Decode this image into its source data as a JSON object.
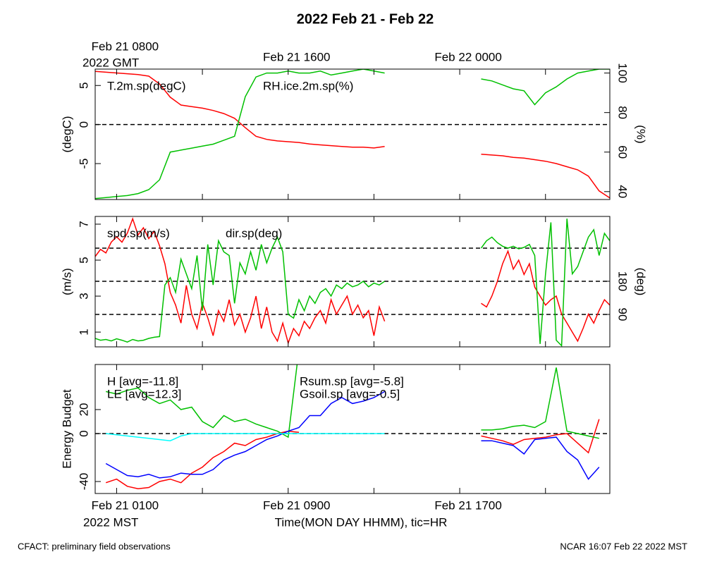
{
  "title": "2022 Feb 21 - Feb 22",
  "footer_left": "CFACT: preliminary field observations",
  "footer_right": "NCAR 16:07 Feb 22 2022 MST",
  "chart_data": [
    {
      "type": "line",
      "xlim": [
        0,
        24
      ],
      "xtick_marks": [
        1,
        5,
        9,
        13,
        17,
        21
      ],
      "top_xticks": [
        {
          "value": 1,
          "label": "Feb 21 0800"
        },
        {
          "value": 9,
          "label": "Feb 21 1600"
        },
        {
          "value": 17,
          "label": "Feb 22 0000"
        }
      ],
      "top_xnote": "2022 GMT",
      "ylabel": "(degC)",
      "y2label": "(%)",
      "ylim": [
        -9.6,
        7.1
      ],
      "yticks": [
        -5,
        0,
        5
      ],
      "y2lim": [
        36,
        102
      ],
      "y2ticks": [
        40,
        60,
        80,
        100
      ],
      "hlines": [
        0
      ],
      "x": [
        0,
        0.5,
        1,
        1.5,
        2,
        2.5,
        3,
        3.5,
        4,
        4.5,
        5,
        5.5,
        6,
        6.5,
        7,
        7.5,
        8,
        8.5,
        9,
        9.5,
        10,
        10.5,
        11,
        11.5,
        12,
        12.5,
        13,
        13.5,
        16,
        18,
        18.5,
        19,
        19.5,
        20,
        20.5,
        21,
        21.5,
        22,
        22.5,
        23,
        23.5,
        24
      ],
      "series": [
        {
          "name": "T.2m.sp(degC)",
          "color": "#ff0000",
          "values": [
            6.8,
            6.7,
            6.6,
            6.5,
            6.4,
            6.2,
            5.2,
            3.5,
            2.5,
            2.3,
            2.1,
            1.8,
            1.4,
            0.8,
            -0.4,
            -1.5,
            -1.9,
            -2.1,
            -2.2,
            -2.3,
            -2.5,
            -2.6,
            -2.7,
            -2.8,
            -2.9,
            -2.9,
            -3.0,
            -2.8,
            null,
            -3.8,
            -3.9,
            -4.0,
            -4.2,
            -4.3,
            -4.5,
            -4.7,
            -5.0,
            -5.4,
            -5.8,
            -6.6,
            -8.5,
            -9.4
          ]
        },
        {
          "name": "RH.ice.2m.sp(%)",
          "color": "#00c000",
          "axis": "y2",
          "values": [
            36.5,
            37,
            37.5,
            38,
            39,
            41,
            46,
            60,
            61,
            62,
            63,
            64,
            66,
            68,
            88,
            98,
            100,
            100,
            101,
            100,
            100,
            101,
            99,
            100,
            101,
            102,
            101,
            100,
            null,
            97,
            96,
            94,
            92,
            91,
            84,
            90,
            93,
            97,
            100,
            101,
            102,
            102
          ]
        }
      ]
    },
    {
      "type": "line",
      "xlim": [
        0,
        24
      ],
      "xtick_marks": [
        1,
        5,
        9,
        13,
        17,
        21
      ],
      "ylabel": "(m/s)",
      "y2label": "(deg)",
      "ylim": [
        0.18,
        7.43
      ],
      "yticks": [
        1,
        3,
        5,
        7
      ],
      "y2lim": [
        2,
        356
      ],
      "y2ticks": [
        90,
        180
      ],
      "hlines_y2": [
        90,
        180,
        270
      ],
      "x": [
        0,
        0.25,
        0.5,
        0.75,
        1,
        1.25,
        1.5,
        1.75,
        2,
        2.25,
        2.5,
        2.75,
        3,
        3.25,
        3.5,
        3.75,
        4,
        4.25,
        4.5,
        4.75,
        5,
        5.25,
        5.5,
        5.75,
        6,
        6.25,
        6.5,
        6.75,
        7,
        7.25,
        7.5,
        7.75,
        8,
        8.25,
        8.5,
        8.75,
        9,
        9.25,
        9.5,
        9.75,
        10,
        10.25,
        10.5,
        10.75,
        11,
        11.25,
        11.5,
        11.75,
        12,
        12.25,
        12.5,
        12.75,
        13,
        13.25,
        13.5,
        16,
        18,
        18.25,
        18.5,
        18.75,
        19,
        19.25,
        19.5,
        19.75,
        20,
        20.25,
        20.5,
        20.75,
        21,
        21.25,
        21.5,
        21.75,
        22,
        22.25,
        22.5,
        22.75,
        23,
        23.25,
        23.5,
        23.75,
        24
      ],
      "series": [
        {
          "name": "spd.sp(m/s)",
          "color": "#ff0000",
          "values": [
            5.2,
            5.6,
            5.4,
            6.0,
            6.3,
            6.0,
            6.5,
            7.3,
            6.4,
            6.8,
            6.2,
            6.6,
            5.8,
            4.8,
            3.2,
            2.5,
            1.5,
            3.6,
            2.0,
            1.2,
            2.6,
            1.8,
            0.8,
            2.2,
            1.6,
            2.8,
            1.4,
            2.0,
            1.0,
            1.8,
            3.0,
            1.2,
            2.4,
            1.0,
            0.5,
            1.5,
            0.4,
            1.2,
            0.8,
            1.6,
            1.2,
            1.8,
            2.2,
            1.5,
            2.8,
            2.0,
            2.5,
            3.0,
            2.0,
            2.5,
            1.8,
            2.2,
            0.8,
            2.4,
            1.6,
            null,
            2.6,
            2.4,
            3.0,
            3.8,
            4.8,
            5.5,
            4.5,
            5.0,
            4.2,
            4.8,
            3.5,
            3.0,
            2.5,
            2.8,
            3.0,
            2.0,
            1.5,
            1.0,
            0.5,
            1.2,
            2.0,
            1.5,
            2.2,
            2.8,
            2.5
          ]
        },
        {
          "name": "dir.sp(deg)",
          "color": "#00c000",
          "axis": "y2",
          "values": [
            25,
            20,
            22,
            18,
            24,
            20,
            15,
            22,
            18,
            20,
            25,
            28,
            30,
            170,
            190,
            150,
            240,
            200,
            160,
            250,
            100,
            280,
            170,
            290,
            260,
            250,
            120,
            230,
            200,
            260,
            210,
            280,
            230,
            270,
            300,
            260,
            90,
            80,
            130,
            100,
            140,
            120,
            150,
            160,
            140,
            170,
            160,
            175,
            165,
            170,
            180,
            165,
            175,
            170,
            180,
            null,
            270,
            290,
            300,
            285,
            275,
            270,
            275,
            268,
            272,
            280,
            250,
            10,
            200,
            340,
            20,
            5,
            350,
            200,
            220,
            260,
            300,
            320,
            250,
            310,
            290
          ]
        }
      ]
    },
    {
      "type": "line",
      "xlim": [
        0,
        24
      ],
      "xtick_marks": [
        1,
        5,
        9,
        13,
        17,
        21
      ],
      "xticks": [
        {
          "value": 1,
          "label": "Feb 21 0100"
        },
        {
          "value": 9,
          "label": "Feb 21 0900"
        },
        {
          "value": 17,
          "label": "Feb 21 1700"
        }
      ],
      "xnote": "2022 MST",
      "xlabel": "Time(MON DAY HHMM), tic=HR",
      "ylabel": "Energy Budget",
      "ylim": [
        -50,
        57.6
      ],
      "yticks": [
        -40,
        0,
        20
      ],
      "hlines": [
        0
      ],
      "x": [
        0.5,
        1,
        1.5,
        2,
        2.5,
        3,
        3.5,
        4,
        4.5,
        5,
        5.5,
        6,
        6.5,
        7,
        7.5,
        8,
        8.5,
        9,
        9.5,
        10,
        10.5,
        11,
        11.5,
        12,
        12.5,
        13,
        13.5,
        16,
        18,
        18.5,
        19,
        19.5,
        20,
        20.5,
        21,
        21.5,
        22,
        22.5,
        23,
        23.5
      ],
      "series": [
        {
          "name": "H [avg=-11.8]",
          "color": "#ff0000",
          "values": [
            -41,
            -38,
            -44,
            -46,
            -45,
            -40,
            -38,
            -41,
            -33,
            -28,
            -20,
            -15,
            -8,
            -10,
            -5,
            -3,
            0,
            2,
            1,
            null,
            null,
            null,
            null,
            null,
            null,
            null,
            null,
            null,
            -2,
            -4,
            -6,
            -9,
            -5,
            -4,
            -3,
            -1,
            0,
            -8,
            -16,
            12
          ]
        },
        {
          "name": "LE [avg=12.3]",
          "color": "#00c000",
          "values": [
            35,
            33,
            36,
            38,
            30,
            25,
            28,
            20,
            22,
            10,
            5,
            15,
            10,
            12,
            8,
            5,
            2,
            -3,
            70,
            null,
            null,
            null,
            null,
            null,
            null,
            null,
            null,
            null,
            3,
            3,
            4,
            6,
            7,
            5,
            10,
            55,
            2,
            0,
            -2,
            -4
          ]
        },
        {
          "name": "Rsum.sp [avg=-5.8]",
          "color": "#0000ff",
          "values": [
            -25,
            -30,
            -35,
            -36,
            -34,
            -37,
            -36,
            -33,
            -34,
            -34,
            -30,
            -22,
            -18,
            -15,
            -10,
            -5,
            -2,
            2,
            5,
            15,
            15,
            25,
            30,
            25,
            27,
            30,
            35,
            null,
            -6,
            -6,
            -8,
            -10,
            -17,
            -5,
            -4,
            -3,
            -15,
            -22,
            -38,
            -28
          ]
        },
        {
          "name": "Gsoil.sp [avg=-0.5]",
          "color": "#00ffff",
          "values": [
            0,
            -1,
            -2,
            -3,
            -4,
            -5,
            -6,
            -2,
            0,
            0,
            0,
            0,
            0,
            0,
            0,
            0,
            0,
            0,
            0,
            0,
            0,
            0,
            0,
            0,
            0,
            0,
            0,
            null,
            null,
            null,
            null,
            null,
            null,
            null,
            null,
            null,
            null,
            null,
            null,
            null
          ]
        }
      ]
    }
  ]
}
